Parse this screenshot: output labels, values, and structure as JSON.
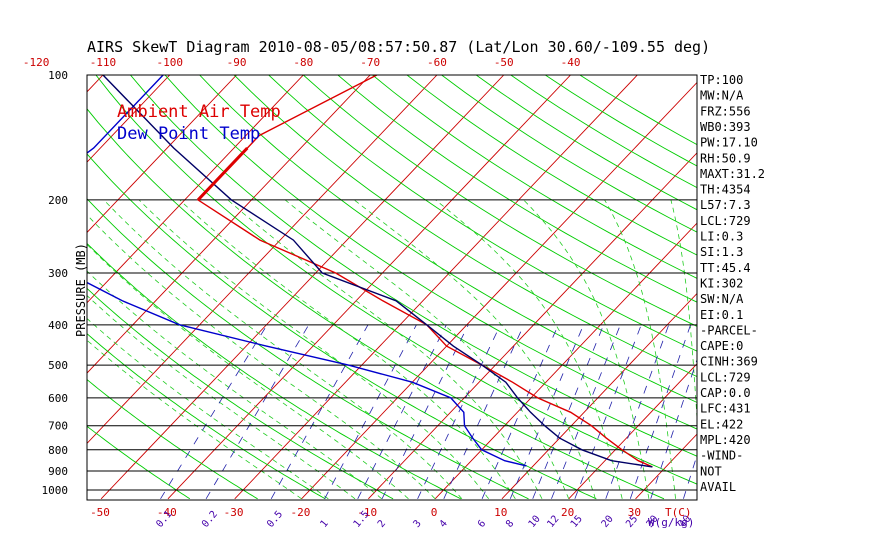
{
  "title": "AIRS SkewT Diagram 2010-08-05/08:57:50.87 (Lat/Lon 30.60/-109.55 deg)",
  "ylabel": "PRESSURE (MB)",
  "xlabel_unit": "T(C)",
  "mixing_unit": "W(g/kg)",
  "legend": {
    "ambient": "Ambient Air Temp",
    "dewpoint": "Dew Point Temp"
  },
  "colors": {
    "background": "#ffffff",
    "axis": "#000000",
    "isotherm": "#cc0000",
    "dry_adiabat": "#00cc00",
    "moist_adiabat": "#22cc22",
    "mixing_ratio": "#2222aa",
    "temperature": "#dd0000",
    "dewpoint": "#0000cc",
    "parcel": "#000066",
    "ticks": "#cc0000",
    "mixing_labels": "#4400aa"
  },
  "top_temp_ticks": [
    "-120",
    "-110",
    "-100",
    "-90",
    "-80",
    "-70",
    "-60",
    "-50",
    "-40"
  ],
  "bottom_temp_ticks": [
    "-50",
    "-40",
    "-30",
    "-20",
    "-10",
    "0",
    "10",
    "20",
    "30"
  ],
  "mixing_ratio_labels": [
    "0.1",
    "0.2",
    "0.5",
    "1",
    "1.5",
    "2",
    "3",
    "4",
    "6",
    "8",
    "10",
    "12",
    "15",
    "20",
    "25",
    "30",
    "40"
  ],
  "pressure_labels": [
    "100",
    "200",
    "300",
    "400",
    "500",
    "600",
    "700",
    "800",
    "900",
    "1000"
  ],
  "indices": [
    "TP:100",
    "MW:N/A",
    "FRZ:556",
    "WB0:393",
    "PW:17.10",
    "RH:50.9",
    "MAXT:31.2",
    "TH:4354",
    "L57:7.3",
    "LCL:729",
    "LI:0.3",
    "SI:1.3",
    "TT:45.4",
    "KI:302",
    "SW:N/A",
    "EI:0.1",
    "-PARCEL-",
    "CAPE:0",
    "CINH:369",
    "LCL:729",
    "CAP:0.0",
    "LFC:431",
    "EL:422",
    "MPL:420",
    "-WIND-",
    "NOT",
    "AVAIL"
  ],
  "chart_data": {
    "type": "line",
    "title": "AIRS SkewT Diagram 2010-08-05/08:57:50.87 (Lat/Lon 30.60/-109.55 deg)",
    "ylabel": "PRESSURE (MB)",
    "xlabel": "T(C)",
    "y_scale": "log",
    "ylim": [
      1050,
      100
    ],
    "xlim_bottom": [
      -50,
      30
    ],
    "series": [
      {
        "name": "Ambient Air Temp",
        "pressure": [
          100,
          140,
          150,
          200,
          250,
          300,
          350,
          400,
          450,
          500,
          550,
          600,
          650,
          700,
          750,
          800,
          850,
          880
        ],
        "temp": [
          -69,
          -78,
          -78,
          -78,
          -63,
          -47,
          -36,
          -26,
          -20,
          -12,
          -5,
          1,
          8,
          13,
          17,
          21,
          25,
          28
        ]
      },
      {
        "name": "Dew Point Temp",
        "pressure": [
          100,
          150,
          200,
          250,
          300,
          350,
          400,
          450,
          500,
          550,
          600,
          650,
          700,
          750,
          800,
          850,
          875
        ],
        "temp": [
          -101,
          -101,
          -104,
          -96,
          -87,
          -75,
          -63,
          -47,
          -32,
          -20,
          -12,
          -8,
          -6,
          -3,
          0,
          5,
          9
        ]
      },
      {
        "name": "",
        "pressure": [
          100,
          150,
          200,
          250,
          300,
          350,
          400,
          450,
          500,
          550,
          600,
          650,
          700,
          750,
          800,
          850,
          880
        ],
        "temp": [
          -110,
          -89,
          -73,
          -58,
          -49,
          -34,
          -26,
          -19,
          -12,
          -6,
          -2,
          2,
          6,
          10,
          15,
          21,
          28
        ]
      }
    ]
  }
}
